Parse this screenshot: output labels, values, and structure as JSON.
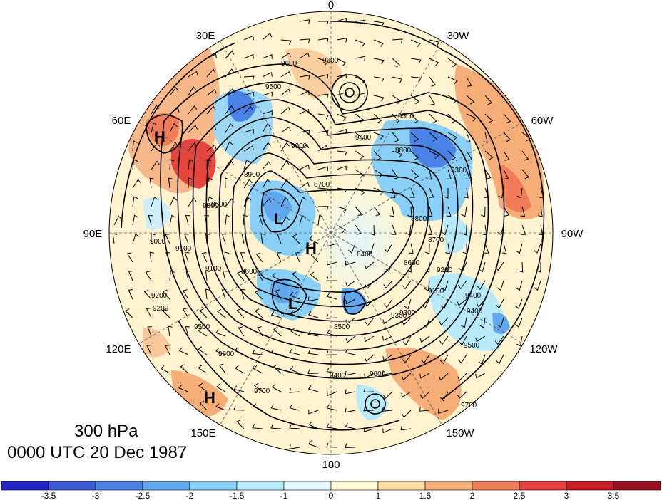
{
  "title": {
    "level": "300 hPa",
    "time": "0000 UTC 20 Dec 1987"
  },
  "longitude_labels": [
    "0",
    "30W",
    "60W",
    "90W",
    "120W",
    "150W",
    "180",
    "150E",
    "120E",
    "90E",
    "60E",
    "30E"
  ],
  "contour_labels": [
    "9600",
    "9600",
    "9500",
    "9500",
    "9400",
    "9300",
    "9200",
    "9100",
    "9000",
    "8900",
    "8800",
    "8700",
    "8600",
    "8500",
    "8600",
    "9300",
    "9400",
    "9500",
    "9600",
    "9700",
    "9700",
    "9600",
    "9500",
    "9400",
    "9300",
    "9200",
    "9100",
    "9000",
    "8800",
    "8600",
    "8400",
    "8700",
    "9100",
    "9200",
    "9300",
    "9400"
  ],
  "pressure_centers": [
    {
      "type": "H",
      "label": "H"
    },
    {
      "type": "H",
      "label": "H"
    },
    {
      "type": "H",
      "label": "H"
    },
    {
      "type": "L",
      "label": "L"
    },
    {
      "type": "L",
      "label": "L"
    }
  ],
  "colorbar": {
    "labels": [
      "-3.5",
      "-3",
      "-2.5",
      "-2",
      "-1.5",
      "-1",
      "0",
      "1",
      "1.5",
      "2",
      "2.5",
      "3",
      "3.5"
    ],
    "colors": [
      "#2424c8",
      "#3c5ad8",
      "#4a82e6",
      "#62a8ee",
      "#8ad0f6",
      "#b8eafa",
      "#e2f6fb",
      "#fff6d2",
      "#fbdca0",
      "#f6ae78",
      "#f07c58",
      "#e64040",
      "#c81e2a",
      "#9a1222"
    ]
  }
}
